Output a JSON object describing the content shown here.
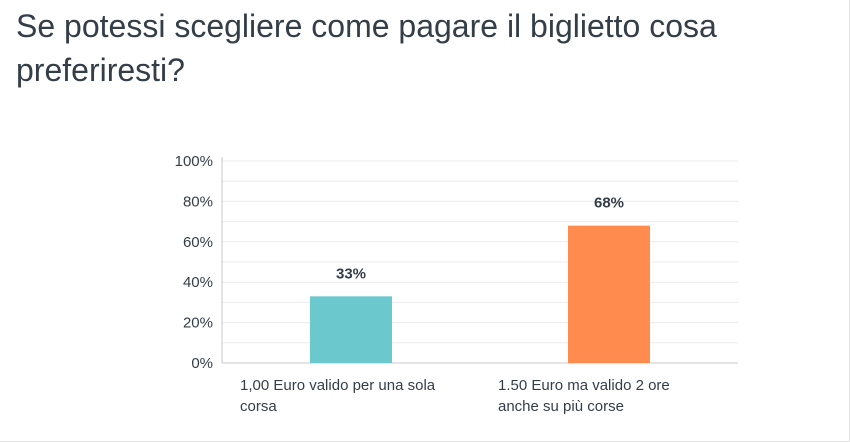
{
  "title": "Se potessi scegliere come pagare il biglietto cosa preferiresti?",
  "chart_data": {
    "type": "bar",
    "title": "Se potessi scegliere come pagare il biglietto cosa preferiresti?",
    "categories": [
      [
        "1,00 Euro valido per una sola",
        "corsa"
      ],
      [
        "1.50 Euro ma valido 2 ore",
        "anche su più corse"
      ]
    ],
    "values": [
      33,
      68
    ],
    "value_labels": [
      "33%",
      "68%"
    ],
    "bar_colors": [
      "#6bc8cd",
      "#ff8b4f"
    ],
    "ylim": [
      0,
      100
    ],
    "yticks": [
      0,
      20,
      40,
      60,
      80,
      100
    ],
    "ytick_labels": [
      "0%",
      "20%",
      "40%",
      "60%",
      "80%",
      "100%"
    ],
    "xlabel": "",
    "ylabel": "",
    "grid": true,
    "legend": "none"
  }
}
